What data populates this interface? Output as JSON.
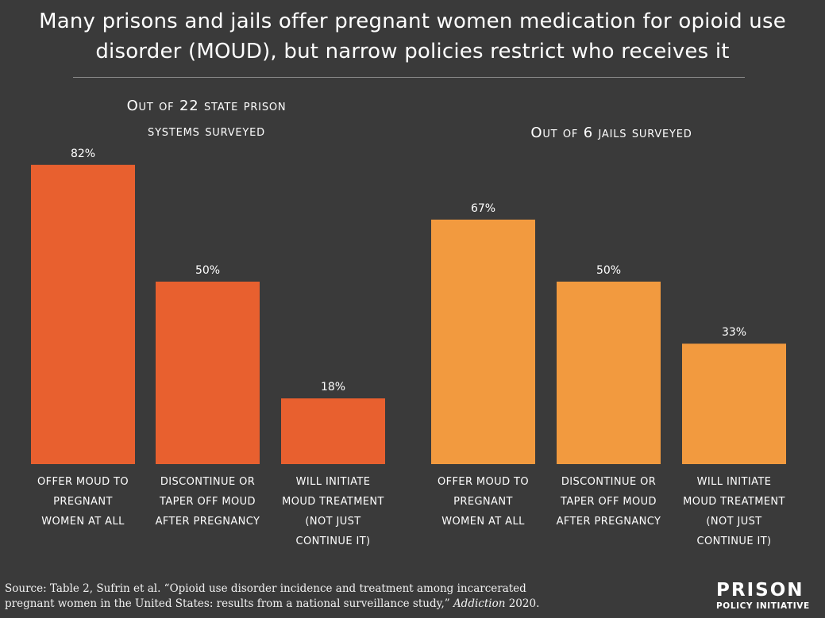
{
  "title_line1": "Many prisons and jails offer pregnant women medication for opioid use",
  "title_line2": "disorder (MOUD), but narrow policies restrict who receives it",
  "chart_data": [
    {
      "type": "bar",
      "title_line1": "Out of 22 state prison",
      "title_line2": "systems surveyed",
      "categories": [
        [
          "OFFER MOUD TO",
          "PREGNANT",
          "WOMEN AT ALL"
        ],
        [
          "DISCONTINUE OR",
          "TAPER OFF MOUD",
          "AFTER PREGNANCY"
        ],
        [
          "WILL INITIATE",
          "MOUD TREATMENT",
          "(NOT JUST",
          "CONTINUE IT)"
        ]
      ],
      "values": [
        82,
        50,
        18
      ],
      "value_labels": [
        "82%",
        "50%",
        "18%"
      ],
      "ylim": [
        0,
        100
      ],
      "color": "#e8602f"
    },
    {
      "type": "bar",
      "title_line1": "Out of 6 jails surveyed",
      "title_line2": "",
      "categories": [
        [
          "OFFER MOUD TO",
          "PREGNANT",
          "WOMEN AT ALL"
        ],
        [
          "DISCONTINUE OR",
          "TAPER OFF MOUD",
          "AFTER PREGNANCY"
        ],
        [
          "WILL INITIATE",
          "MOUD TREATMENT",
          "(NOT JUST",
          "CONTINUE IT)"
        ]
      ],
      "values": [
        67,
        50,
        33
      ],
      "value_labels": [
        "67%",
        "50%",
        "33%"
      ],
      "ylim": [
        0,
        100
      ],
      "color": "#f29a3f"
    }
  ],
  "source_prefix": "Source: Table 2, Sufrin et al. “Opioid use disorder incidence and treatment among incarcerated",
  "source_line2": "pregnant women in the United States: results from a national surveillance study,”",
  "source_journal": "Addiction",
  "source_year": "2020.",
  "logo_top": "PRISON",
  "logo_bottom": "POLICY INITIATIVE"
}
